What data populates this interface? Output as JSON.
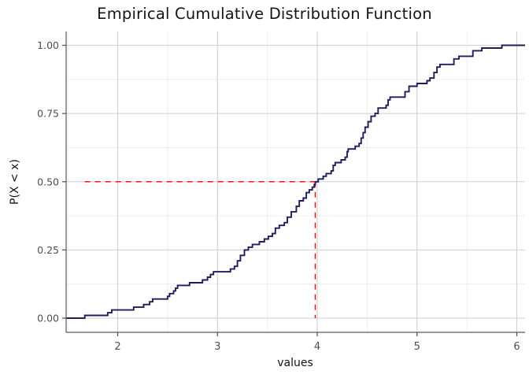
{
  "chart": {
    "title": "Empirical Cumulative Distribution Function",
    "xlabel": "values",
    "ylabel": "P(X < x)"
  },
  "chart_data": {
    "type": "line",
    "subtype": "ecdf-step",
    "title": "Empirical Cumulative Distribution Function",
    "xlabel": "values",
    "ylabel": "P(X < x)",
    "grid": true,
    "legend": "none",
    "xlim": [
      1.483,
      6.083
    ],
    "ylim": [
      -0.052,
      1.0505
    ],
    "x_ticks": [
      2,
      3,
      4,
      5,
      6
    ],
    "y_ticks": [
      0,
      0.25,
      0.5,
      0.75,
      1
    ],
    "y_tick_labels": [
      "0.00",
      "0.25",
      "0.50",
      "0.75",
      "1.00"
    ],
    "x_minor_breaks": [
      1.5,
      2.5,
      3.5,
      4.5,
      5.5
    ],
    "y_minor_breaks": [
      0.125,
      0.375,
      0.625,
      0.875
    ],
    "median_annotation": {
      "median_x": 3.98,
      "p": 0.5,
      "h_line": {
        "x1": 1.67,
        "x2": 3.98,
        "y": 0.5
      },
      "v_line": {
        "x": 3.98,
        "y1": 0.5,
        "y2": 0.0
      },
      "style": "dashed"
    },
    "ecdf_steps": [
      [
        1.67,
        0.01
      ],
      [
        1.9,
        0.02
      ],
      [
        1.94,
        0.03
      ],
      [
        2.16,
        0.04
      ],
      [
        2.26,
        0.05
      ],
      [
        2.32,
        0.06
      ],
      [
        2.35,
        0.07
      ],
      [
        2.5,
        0.08
      ],
      [
        2.52,
        0.09
      ],
      [
        2.56,
        0.1
      ],
      [
        2.58,
        0.11
      ],
      [
        2.6,
        0.12
      ],
      [
        2.72,
        0.13
      ],
      [
        2.85,
        0.14
      ],
      [
        2.9,
        0.15
      ],
      [
        2.93,
        0.16
      ],
      [
        2.96,
        0.17
      ],
      [
        3.13,
        0.18
      ],
      [
        3.17,
        0.19
      ],
      [
        3.2,
        0.21
      ],
      [
        3.23,
        0.23
      ],
      [
        3.27,
        0.25
      ],
      [
        3.31,
        0.26
      ],
      [
        3.35,
        0.27
      ],
      [
        3.42,
        0.28
      ],
      [
        3.47,
        0.29
      ],
      [
        3.51,
        0.3
      ],
      [
        3.55,
        0.31
      ],
      [
        3.58,
        0.33
      ],
      [
        3.62,
        0.34
      ],
      [
        3.67,
        0.35
      ],
      [
        3.7,
        0.37
      ],
      [
        3.74,
        0.39
      ],
      [
        3.79,
        0.41
      ],
      [
        3.82,
        0.43
      ],
      [
        3.86,
        0.44
      ],
      [
        3.89,
        0.46
      ],
      [
        3.92,
        0.47
      ],
      [
        3.95,
        0.48
      ],
      [
        3.97,
        0.49
      ],
      [
        3.98,
        0.5
      ],
      [
        4.01,
        0.51
      ],
      [
        4.06,
        0.52
      ],
      [
        4.09,
        0.53
      ],
      [
        4.14,
        0.54
      ],
      [
        4.16,
        0.56
      ],
      [
        4.18,
        0.57
      ],
      [
        4.24,
        0.58
      ],
      [
        4.28,
        0.59
      ],
      [
        4.3,
        0.61
      ],
      [
        4.31,
        0.62
      ],
      [
        4.38,
        0.63
      ],
      [
        4.42,
        0.64
      ],
      [
        4.44,
        0.66
      ],
      [
        4.46,
        0.68
      ],
      [
        4.48,
        0.7
      ],
      [
        4.51,
        0.72
      ],
      [
        4.54,
        0.74
      ],
      [
        4.58,
        0.75
      ],
      [
        4.61,
        0.77
      ],
      [
        4.69,
        0.78
      ],
      [
        4.71,
        0.8
      ],
      [
        4.73,
        0.81
      ],
      [
        4.88,
        0.83
      ],
      [
        4.92,
        0.85
      ],
      [
        5.0,
        0.86
      ],
      [
        5.1,
        0.87
      ],
      [
        5.13,
        0.88
      ],
      [
        5.17,
        0.9
      ],
      [
        5.2,
        0.92
      ],
      [
        5.23,
        0.93
      ],
      [
        5.37,
        0.95
      ],
      [
        5.42,
        0.96
      ],
      [
        5.56,
        0.98
      ],
      [
        5.65,
        0.99
      ],
      [
        5.85,
        1.0
      ]
    ],
    "colors": {
      "ecdf_line": "#221B5E",
      "median_dash": "#F81511",
      "grid_major": "#CFCFCF",
      "grid_minor": "#EBEBEB",
      "axis_line": "#5A5A5A",
      "tick_mark": "#4D4D4D",
      "tick_label": "#4D4D4D",
      "title": "#151515",
      "background": "#FFFFFF"
    }
  }
}
